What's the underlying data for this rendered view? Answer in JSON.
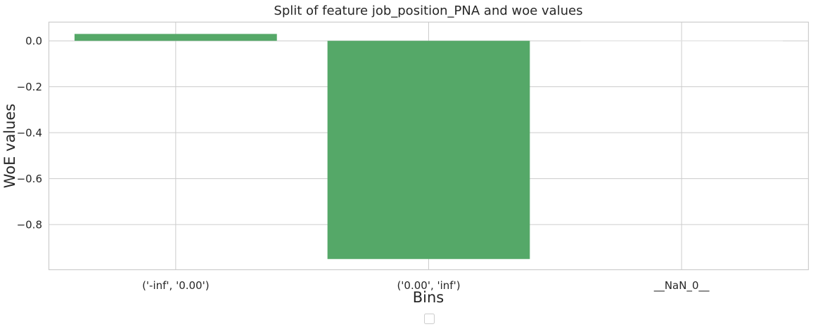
{
  "chart_data": {
    "type": "bar",
    "title": "Split of feature job_position_PNA and woe values",
    "xlabel": "Bins",
    "ylabel": "WoE values",
    "categories": [
      "('-inf', '0.00')",
      "('0.00', 'inf')",
      "__NaN_0__"
    ],
    "values": [
      0.03,
      -0.95,
      0.0
    ],
    "ylim": [
      -0.995,
      0.08
    ],
    "yticks": [
      0.0,
      -0.2,
      -0.4,
      -0.6,
      -0.8
    ],
    "ytick_labels": [
      "0.0",
      "−0.2",
      "−0.4",
      "−0.6",
      "−0.8"
    ],
    "grid": true,
    "legend": "bottom-center (empty)",
    "colors": {
      "bar": "#55a868",
      "grid": "#cccccc",
      "frame": "#cccccc",
      "text": "#262626"
    }
  }
}
